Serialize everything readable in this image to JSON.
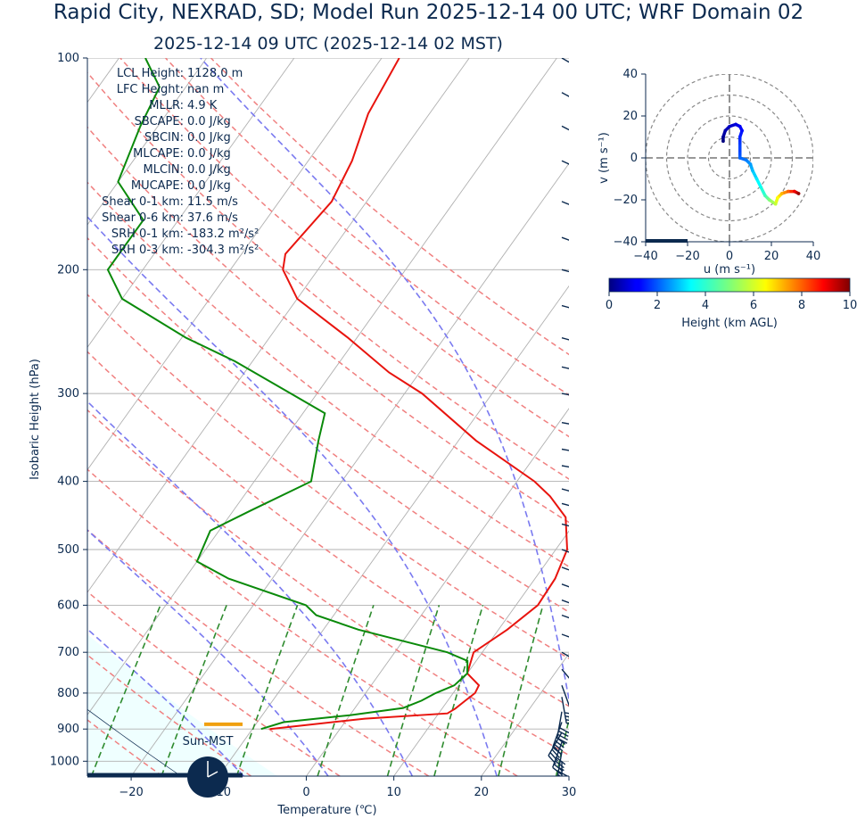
{
  "title": "Rapid City, NEXRAD, SD; Model Run 2025-12-14 00 UTC; WRF Domain 02",
  "subtitle": "2025-12-14 09 UTC  (2025-12-14 02 MST)",
  "colors": {
    "temperature": "#e8140e",
    "dewpoint": "#0a8a0a",
    "dry_adiabat": "#f08080",
    "moist_adiabat": "#7a7af0",
    "mixing_ratio": "#2e8b2e",
    "isotherm": "#b0b0b0",
    "parcel_fill": "#efffff",
    "barb": "#0c2a4f",
    "lcl_marker": "#f0a010"
  },
  "indices": [
    {
      "label": "LCL Height:",
      "value": "1128.0 m"
    },
    {
      "label": "LFC Height:",
      "value": "nan m"
    },
    {
      "label": "MLLR:",
      "value": "4.9 K"
    },
    {
      "label": "SBCAPE:",
      "value": "0.0 J/kg"
    },
    {
      "label": "SBCIN:",
      "value": "0.0 J/kg"
    },
    {
      "label": "MLCAPE:",
      "value": "0.0 J/kg"
    },
    {
      "label": "MLCIN:",
      "value": "0.0 J/kg"
    },
    {
      "label": "MUCAPE:",
      "value": "0.0 J/kg"
    },
    {
      "label": "Shear 0-1 km:",
      "value": "11.5 m/s"
    },
    {
      "label": "Shear 0-6 km:",
      "value": "37.6 m/s"
    },
    {
      "label": "SRH 0-1 km:",
      "value": "-183.2 m²/s²"
    },
    {
      "label": "SRH 0-3 km:",
      "value": "-304.3 m²/s²"
    }
  ],
  "clock_label": "Sun-MST",
  "chart_data": [
    {
      "type": "line",
      "subtype": "skew-t",
      "xlabel": "Temperature (℃)",
      "ylabel": "Isobaric Height (hPa)",
      "xlim": [
        -25,
        30
      ],
      "ylim": [
        1050,
        100
      ],
      "y_scale": "log",
      "x_ticks": [
        "−20",
        "−10",
        "0",
        "10",
        "20",
        "30"
      ],
      "x_tick_values": [
        -20,
        -10,
        0,
        10,
        20,
        30
      ],
      "y_ticks": [
        "100",
        "200",
        "300",
        "400",
        "500",
        "600",
        "700",
        "800",
        "900",
        "1000"
      ],
      "y_tick_values": [
        100,
        200,
        300,
        400,
        500,
        600,
        700,
        800,
        900,
        1000
      ],
      "skew_deg_per_decade": 57.4,
      "isotherms": [
        -100,
        -90,
        -80,
        -70,
        -60,
        -50,
        -40,
        -30,
        -20,
        -10,
        0,
        10,
        20,
        30
      ],
      "dry_adiabats_C": [
        -30,
        -20,
        -10,
        0,
        10,
        20,
        30,
        40,
        50,
        60,
        70,
        80,
        90,
        100,
        110,
        120
      ],
      "moist_adiabats_C": [
        -10,
        0,
        10,
        20,
        30
      ],
      "mixing_ratios_gkg": [
        0.5,
        1,
        2,
        4,
        7,
        10,
        16,
        24
      ],
      "temperature": [
        [
          900,
          -8.0
        ],
        [
          870,
          2.0
        ],
        [
          855,
          11.0
        ],
        [
          842,
          11.5
        ],
        [
          820,
          12.0
        ],
        [
          800,
          12.5
        ],
        [
          780,
          12.3
        ],
        [
          750,
          10.0
        ],
        [
          700,
          9.0
        ],
        [
          650,
          11.0
        ],
        [
          600,
          12.5
        ],
        [
          550,
          12.3
        ],
        [
          500,
          11.3
        ],
        [
          450,
          8.5
        ],
        [
          420,
          5.0
        ],
        [
          400,
          2.0
        ],
        [
          350,
          -8.0
        ],
        [
          300,
          -18.0
        ],
        [
          280,
          -23.5
        ],
        [
          250,
          -31.0
        ],
        [
          220,
          -40.0
        ],
        [
          200,
          -44.0
        ],
        [
          190,
          -45.0
        ],
        [
          160,
          -44.0
        ],
        [
          140,
          -45.0
        ],
        [
          120,
          -47.0
        ],
        [
          100,
          -48.0
        ]
      ],
      "dewpoint": [
        [
          900,
          -9.0
        ],
        [
          880,
          -7.0
        ],
        [
          860,
          0.0
        ],
        [
          840,
          5.5
        ],
        [
          820,
          7.0
        ],
        [
          800,
          8.0
        ],
        [
          780,
          9.5
        ],
        [
          750,
          10.0
        ],
        [
          720,
          9.0
        ],
        [
          700,
          6.0
        ],
        [
          650,
          -6.0
        ],
        [
          620,
          -12.0
        ],
        [
          600,
          -14.0
        ],
        [
          550,
          -25.0
        ],
        [
          520,
          -30.0
        ],
        [
          470,
          -31.0
        ],
        [
          440,
          -28.0
        ],
        [
          400,
          -23.5
        ],
        [
          350,
          -26.0
        ],
        [
          320,
          -27.5
        ],
        [
          300,
          -33.0
        ],
        [
          270,
          -42.0
        ],
        [
          250,
          -49.5
        ],
        [
          220,
          -60.0
        ],
        [
          200,
          -64.0
        ],
        [
          170,
          -64.0
        ],
        [
          150,
          -70.0
        ],
        [
          125,
          -72.0
        ],
        [
          110,
          -73.0
        ],
        [
          100,
          -77.0
        ]
      ],
      "lcl_pressure": 886,
      "wind_barbs": [
        {
          "p": 100,
          "spd_kt": 60,
          "dir": 300
        },
        {
          "p": 112,
          "spd_kt": 58,
          "dir": 298
        },
        {
          "p": 125,
          "spd_kt": 55,
          "dir": 297
        },
        {
          "p": 140,
          "spd_kt": 55,
          "dir": 295
        },
        {
          "p": 160,
          "spd_kt": 55,
          "dir": 292
        },
        {
          "p": 180,
          "spd_kt": 50,
          "dir": 290
        },
        {
          "p": 200,
          "spd_kt": 55,
          "dir": 285
        },
        {
          "p": 225,
          "spd_kt": 55,
          "dir": 285
        },
        {
          "p": 250,
          "spd_kt": 55,
          "dir": 285
        },
        {
          "p": 275,
          "spd_kt": 55,
          "dir": 283
        },
        {
          "p": 300,
          "spd_kt": 55,
          "dir": 280
        },
        {
          "p": 330,
          "spd_kt": 55,
          "dir": 280
        },
        {
          "p": 360,
          "spd_kt": 55,
          "dir": 280
        },
        {
          "p": 380,
          "spd_kt": 55,
          "dir": 280
        },
        {
          "p": 410,
          "spd_kt": 55,
          "dir": 285
        },
        {
          "p": 430,
          "spd_kt": 55,
          "dir": 285
        },
        {
          "p": 460,
          "spd_kt": 55,
          "dir": 285
        },
        {
          "p": 500,
          "spd_kt": 45,
          "dir": 290
        },
        {
          "p": 530,
          "spd_kt": 40,
          "dir": 290
        },
        {
          "p": 560,
          "spd_kt": 40,
          "dir": 290
        },
        {
          "p": 590,
          "spd_kt": 35,
          "dir": 290
        },
        {
          "p": 620,
          "spd_kt": 35,
          "dir": 290
        },
        {
          "p": 660,
          "spd_kt": 35,
          "dir": 290
        },
        {
          "p": 700,
          "spd_kt": 30,
          "dir": 300
        },
        {
          "p": 740,
          "spd_kt": 25,
          "dir": 320
        },
        {
          "p": 780,
          "spd_kt": 30,
          "dir": 340
        },
        {
          "p": 810,
          "spd_kt": 35,
          "dir": 350
        },
        {
          "p": 850,
          "spd_kt": 40,
          "dir": 10
        },
        {
          "p": 880,
          "spd_kt": 40,
          "dir": 20
        },
        {
          "p": 910,
          "spd_kt": 40,
          "dir": 30
        },
        {
          "p": 940,
          "spd_kt": 40,
          "dir": 20
        },
        {
          "p": 970,
          "spd_kt": 35,
          "dir": 10
        },
        {
          "p": 1000,
          "spd_kt": 30,
          "dir": 0
        }
      ]
    },
    {
      "type": "scatter",
      "subtype": "hodograph",
      "xlabel": "u (m s⁻¹)",
      "ylabel": "v (m s⁻¹)",
      "xlim": [
        -40,
        40
      ],
      "ylim": [
        -40,
        40
      ],
      "x_ticks": [
        "−40",
        "−20",
        "0",
        "20",
        "40"
      ],
      "x_tick_values": [
        -40,
        -20,
        0,
        20,
        40
      ],
      "y_ticks": [
        "40",
        "20",
        "0",
        "−20",
        "−40"
      ],
      "y_tick_values": [
        40,
        20,
        0,
        -20,
        -40
      ],
      "rings": [
        10,
        20,
        30,
        40
      ],
      "points": [
        [
          -3,
          8,
          0
        ],
        [
          -3,
          10,
          0.2
        ],
        [
          -2,
          13,
          0.4
        ],
        [
          0,
          15,
          0.6
        ],
        [
          3,
          16,
          0.8
        ],
        [
          5,
          15,
          1.0
        ],
        [
          6,
          13,
          1.2
        ],
        [
          5,
          10,
          1.4
        ],
        [
          5,
          7,
          1.6
        ],
        [
          5,
          2,
          1.8
        ],
        [
          5,
          0,
          2.0
        ],
        [
          8,
          -1,
          2.2
        ],
        [
          10,
          -3,
          2.5
        ],
        [
          11,
          -6,
          2.8
        ],
        [
          13,
          -10,
          3.2
        ],
        [
          15,
          -14,
          3.6
        ],
        [
          17,
          -18,
          4.2
        ],
        [
          19,
          -20,
          5.0
        ],
        [
          22,
          -22,
          5.8
        ],
        [
          23,
          -19,
          6.5
        ],
        [
          25,
          -17,
          7.2
        ],
        [
          28,
          -16,
          8.0
        ],
        [
          31,
          -16,
          9.0
        ],
        [
          33,
          -17,
          9.8
        ]
      ],
      "colorbar": {
        "label": "Height (km AGL)",
        "ticks": [
          "0",
          "2",
          "4",
          "6",
          "8",
          "10"
        ],
        "min": 0,
        "max": 10,
        "colormap": "jet"
      }
    }
  ]
}
